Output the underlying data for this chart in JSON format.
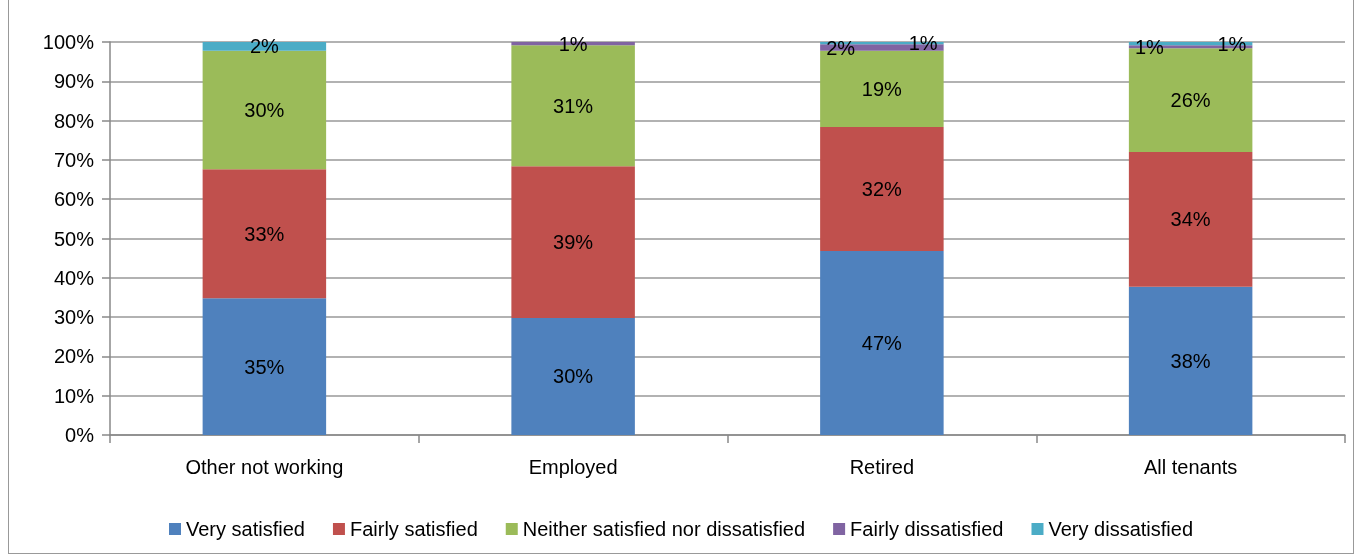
{
  "chart_data": {
    "type": "bar",
    "stacked": true,
    "categories": [
      "Other not working",
      "Employed",
      "Retired",
      "All tenants"
    ],
    "series": [
      {
        "name": "Very satisfied",
        "color": "#4f81bd",
        "values": [
          34.8,
          29.8,
          46.8,
          37.7
        ],
        "value_labels": [
          "35%",
          "30%",
          "47%",
          "38%"
        ]
      },
      {
        "name": "Fairly satisfied",
        "color": "#c0504d",
        "values": [
          32.8,
          38.6,
          31.6,
          34.3
        ],
        "value_labels": [
          "33%",
          "39%",
          "32%",
          "34%"
        ]
      },
      {
        "name": "Neither satisfied nor dissatisfied",
        "color": "#9bbb59",
        "values": [
          30.2,
          30.8,
          19.4,
          26.4
        ],
        "value_labels": [
          "30%",
          "31%",
          "19%",
          "26%"
        ]
      },
      {
        "name": "Fairly dissatisfied",
        "color": "#8064a2",
        "values": [
          null,
          0.8,
          1.6,
          0.8
        ],
        "value_labels": [
          null,
          "1%",
          "2%",
          "1%"
        ]
      },
      {
        "name": "Very dissatisfied",
        "color": "#4bacc6",
        "values": [
          2.2,
          null,
          0.6,
          0.8
        ],
        "value_labels": [
          "2%",
          null,
          "1%",
          "1%"
        ]
      }
    ],
    "ylim": [
      0,
      100
    ],
    "yticks": [
      {
        "value": 0,
        "label": "0%"
      },
      {
        "value": 10,
        "label": "10%"
      },
      {
        "value": 20,
        "label": "20%"
      },
      {
        "value": 30,
        "label": "30%"
      },
      {
        "value": 40,
        "label": "40%"
      },
      {
        "value": 50,
        "label": "50%"
      },
      {
        "value": 60,
        "label": "60%"
      },
      {
        "value": 70,
        "label": "70%"
      },
      {
        "value": 80,
        "label": "80%"
      },
      {
        "value": 90,
        "label": "90%"
      },
      {
        "value": 100,
        "label": "100%"
      }
    ],
    "grid": "y",
    "legend": "bottom"
  }
}
